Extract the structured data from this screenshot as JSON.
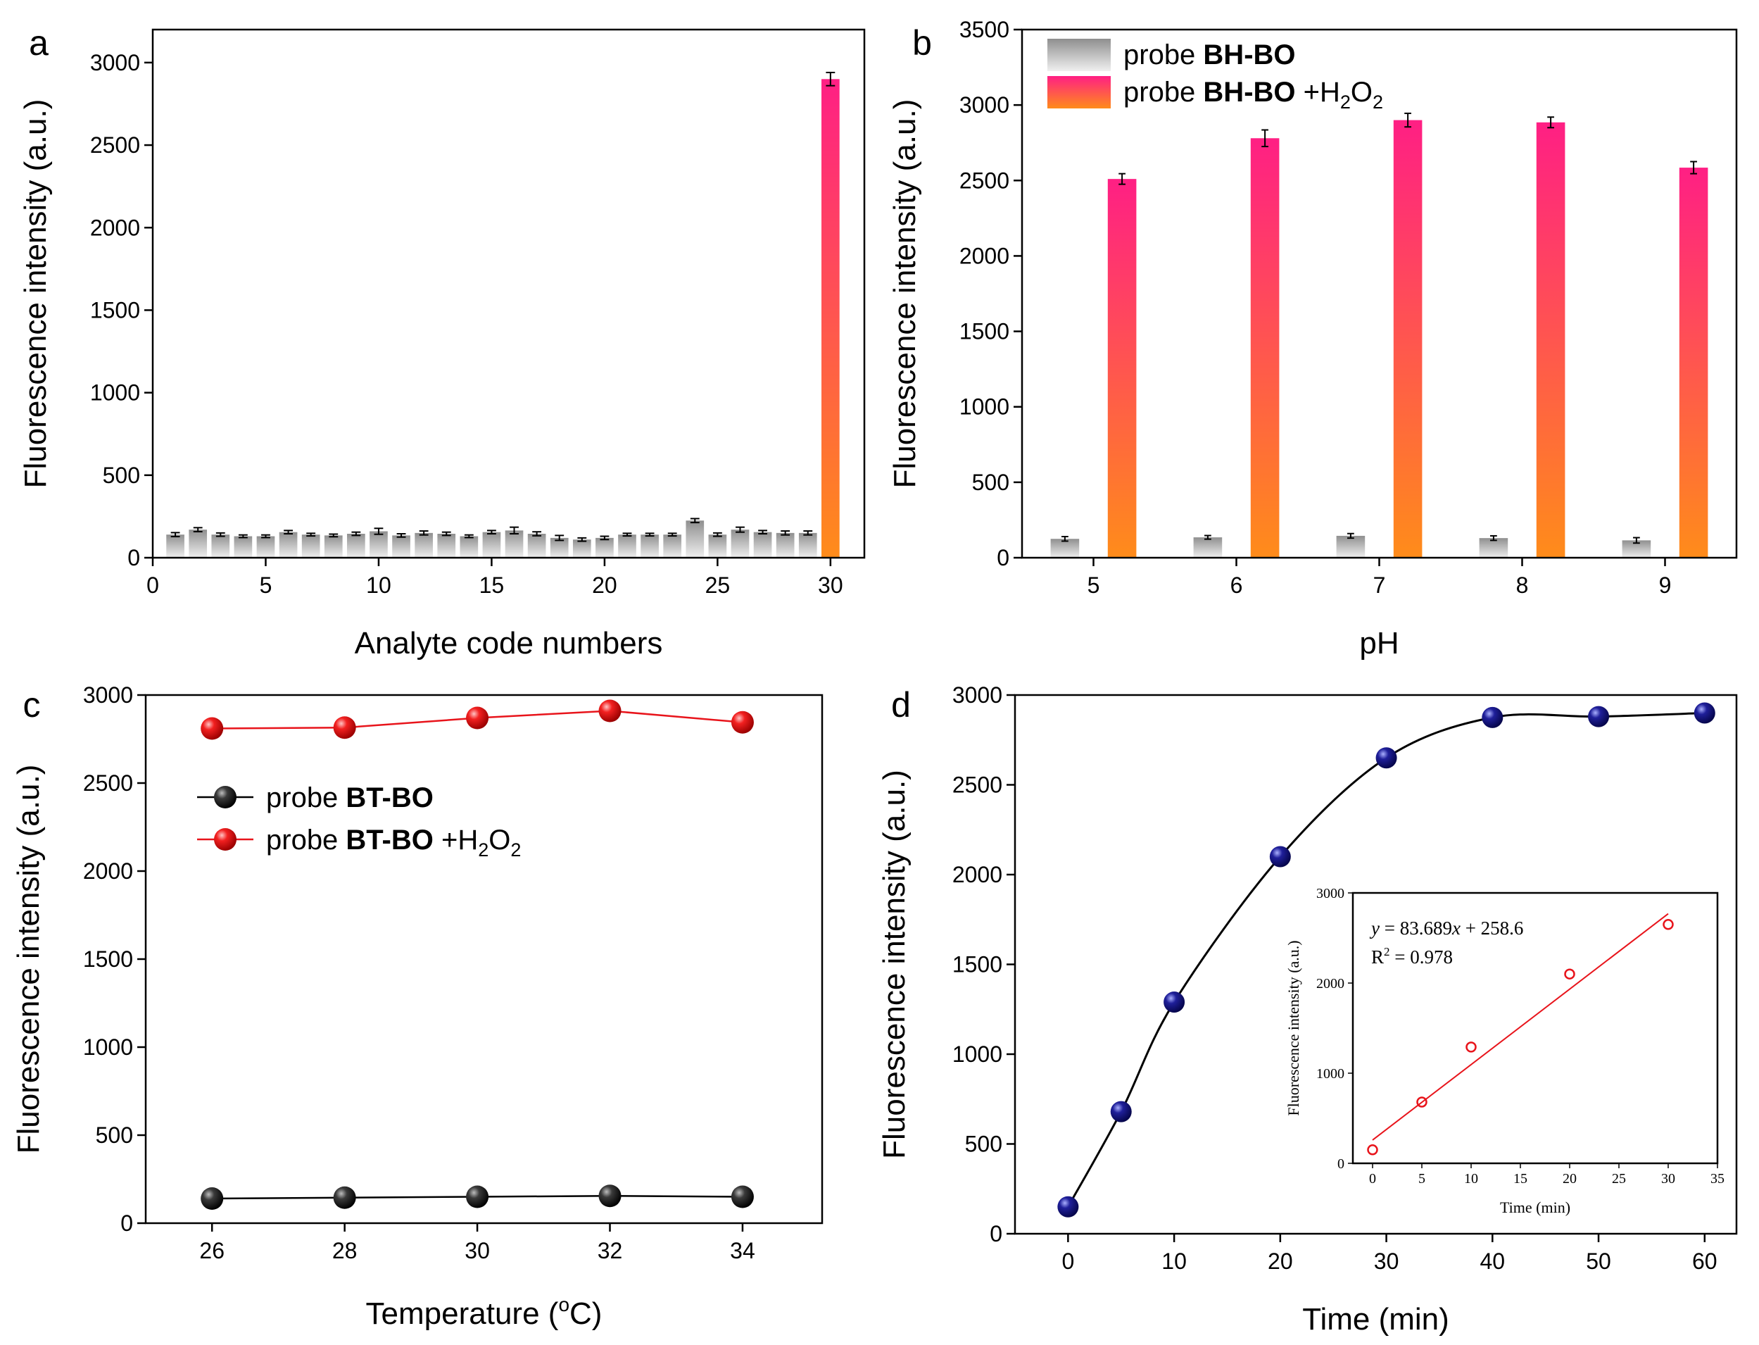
{
  "chart_data": [
    {
      "panel": "a",
      "type": "bar",
      "xlabel": "Analyte code numbers",
      "ylabel": "Fluorescence intensity (a.u.)",
      "xlim": [
        0,
        31.5
      ],
      "ylim": [
        0,
        3200
      ],
      "xticks": [
        0,
        5,
        10,
        15,
        20,
        25,
        30
      ],
      "yticks": [
        0,
        500,
        1000,
        1500,
        2000,
        2500,
        3000
      ],
      "x": [
        1,
        2,
        3,
        4,
        5,
        6,
        7,
        8,
        9,
        10,
        11,
        12,
        13,
        14,
        15,
        16,
        17,
        18,
        19,
        20,
        21,
        22,
        23,
        24,
        25,
        26,
        27,
        28,
        29,
        30
      ],
      "values": [
        140,
        170,
        140,
        130,
        130,
        155,
        140,
        135,
        145,
        160,
        135,
        150,
        145,
        130,
        155,
        165,
        145,
        120,
        110,
        120,
        140,
        140,
        140,
        225,
        140,
        170,
        155,
        150,
        150,
        2900
      ],
      "errors": [
        12,
        12,
        10,
        8,
        8,
        10,
        8,
        8,
        10,
        18,
        10,
        12,
        10,
        8,
        10,
        20,
        12,
        15,
        10,
        10,
        8,
        8,
        8,
        12,
        10,
        15,
        10,
        12,
        12,
        40
      ],
      "colors": {
        "gray_top": "#8f8f8f",
        "gray_bottom": "#f0f0f0",
        "hi_top": "#ff1f84",
        "hi_bottom": "#ff8c1a"
      }
    },
    {
      "panel": "b",
      "type": "bar",
      "xlabel": "pH",
      "ylabel": "Fluorescence intensity (a.u.)",
      "xlim": [
        4.5,
        9.5
      ],
      "ylim": [
        0,
        3500
      ],
      "yticks": [
        0,
        500,
        1000,
        1500,
        2000,
        2500,
        3000,
        3500
      ],
      "categories": [
        "5",
        "6",
        "7",
        "8",
        "9"
      ],
      "series": [
        {
          "name_prefix": "probe ",
          "name_bold": "BH-BO",
          "name_suffix": "",
          "values": [
            125,
            135,
            145,
            130,
            115
          ],
          "errors": [
            15,
            12,
            15,
            15,
            18
          ],
          "colors": {
            "top": "#8f8f8f",
            "bottom": "#f0f0f0"
          }
        },
        {
          "name_prefix": "probe ",
          "name_bold": "BH-BO",
          "name_suffix": " +H",
          "sub1": "2",
          "mid": "O",
          "sub2": "2",
          "values": [
            2510,
            2780,
            2900,
            2885,
            2585
          ],
          "errors": [
            35,
            55,
            45,
            35,
            40
          ],
          "colors": {
            "top": "#ff1f84",
            "bottom": "#ff8c1a"
          }
        }
      ],
      "legend": "top-left"
    },
    {
      "panel": "c",
      "type": "line",
      "xlabel_prefix": "Temperature (",
      "xlabel_sup": "o",
      "xlabel_suffix": "C)",
      "ylabel": "Fluorescence intensity (a.u.)",
      "xlim": [
        25,
        35.2
      ],
      "ylim": [
        0,
        3000
      ],
      "xticks": [
        26,
        28,
        30,
        32,
        34
      ],
      "yticks": [
        0,
        500,
        1000,
        1500,
        2000,
        2500,
        3000
      ],
      "x": [
        26,
        28,
        30,
        32,
        34
      ],
      "series": [
        {
          "name_prefix": "probe ",
          "name_bold": "BT-BO",
          "name_suffix": "",
          "values": [
            140,
            145,
            150,
            155,
            150
          ],
          "color": "#000000"
        },
        {
          "name_prefix": "probe ",
          "name_bold": "BT-BO",
          "name_suffix": " +H",
          "sub1": "2",
          "mid": "O",
          "sub2": "2",
          "values": [
            2810,
            2815,
            2870,
            2910,
            2845
          ],
          "color": "#e8141b"
        }
      ],
      "legend": "upper-left"
    },
    {
      "panel": "d",
      "type": "scatter",
      "xlabel": "Time (min)",
      "ylabel": "Fluorescence intensity (a.u.)",
      "xlim": [
        -5,
        63
      ],
      "ylim": [
        0,
        3000
      ],
      "xticks": [
        0,
        10,
        20,
        30,
        40,
        50,
        60
      ],
      "yticks": [
        0,
        500,
        1000,
        1500,
        2000,
        2500,
        3000
      ],
      "x": [
        0,
        5,
        10,
        20,
        30,
        40,
        50,
        60
      ],
      "values": [
        150,
        680,
        1290,
        2100,
        2650,
        2875,
        2880,
        2900
      ],
      "fit": "sigmoidal",
      "color": "#1a1a8c",
      "inset": {
        "type": "scatter",
        "xlabel": "Time (min)",
        "ylabel": "Fluorescence intensity (a.u.)",
        "xlim": [
          -2,
          35
        ],
        "ylim": [
          0,
          3000
        ],
        "xticks": [
          0,
          5,
          10,
          15,
          20,
          25,
          30,
          35
        ],
        "yticks": [
          0,
          1000,
          2000,
          3000
        ],
        "x": [
          0,
          5,
          10,
          20,
          30
        ],
        "values": [
          150,
          680,
          1290,
          2100,
          2650
        ],
        "fit_slope": 83.689,
        "fit_intercept": 258.6,
        "equation_prefix": "y",
        "equation_mid": " = 83.689",
        "equation_x": "x",
        "equation_suffix": " + 258.6",
        "r2_prefix": "R",
        "r2_sup": "2",
        "r2_suffix": " = 0.978",
        "color": "#e8141b"
      }
    }
  ]
}
